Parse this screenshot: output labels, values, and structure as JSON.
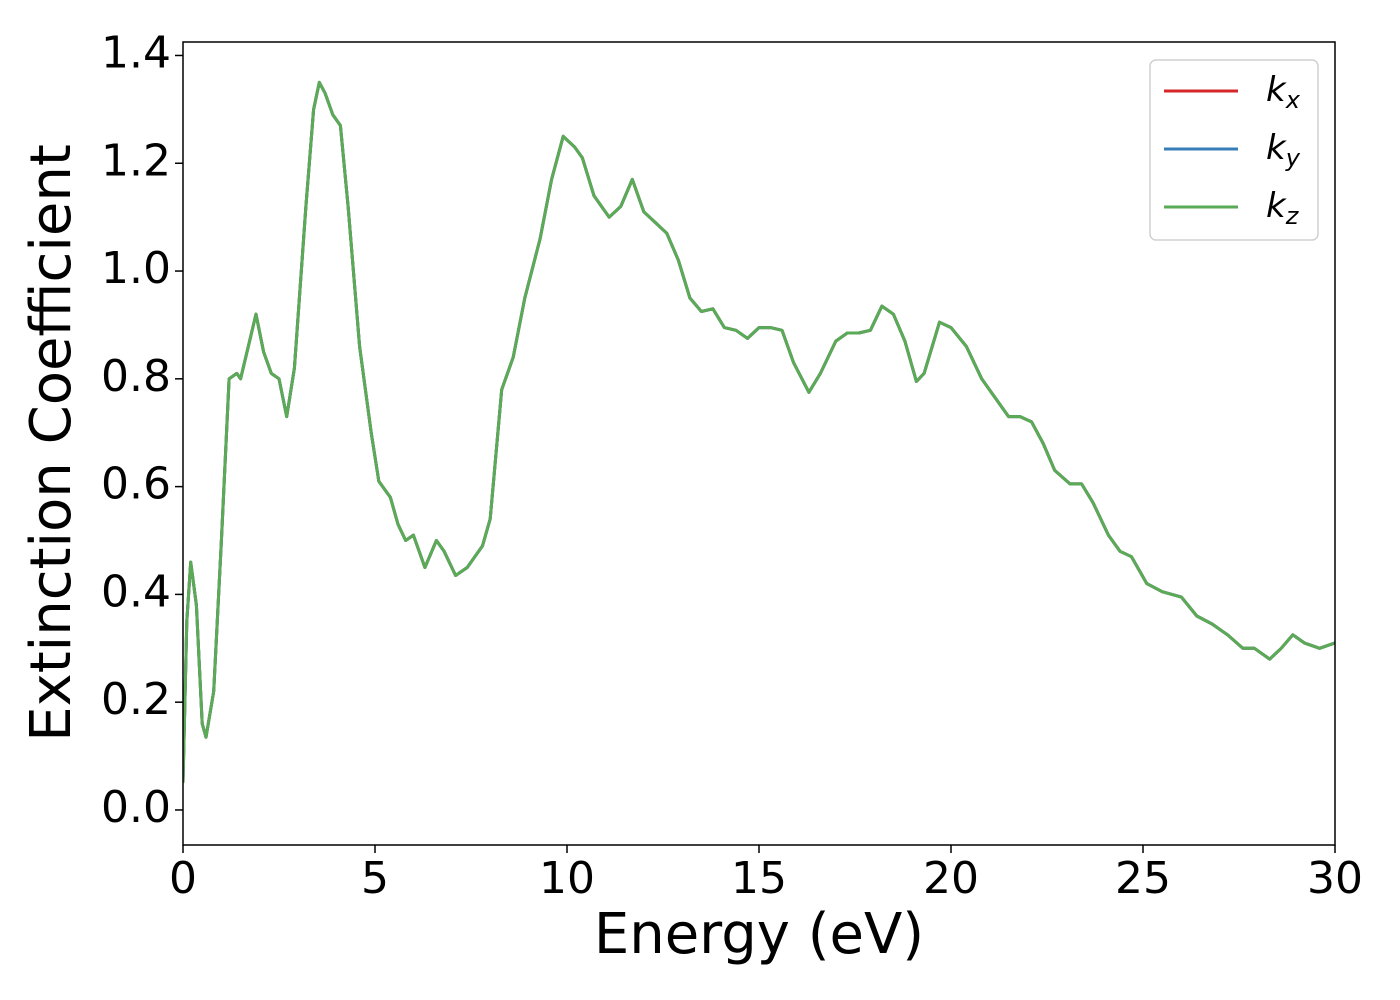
{
  "chart_data": {
    "type": "line",
    "xlabel": "Energy (eV)",
    "ylabel": "Extinction Coefficient",
    "x": [
      0,
      0.1,
      0.2,
      0.35,
      0.5,
      0.6,
      0.8,
      1.0,
      1.2,
      1.4,
      1.5,
      1.7,
      1.9,
      2.1,
      2.3,
      2.5,
      2.7,
      2.9,
      3.2,
      3.4,
      3.55,
      3.7,
      3.9,
      4.1,
      4.3,
      4.6,
      4.9,
      5.1,
      5.4,
      5.6,
      5.8,
      6.0,
      6.3,
      6.6,
      6.8,
      7.1,
      7.4,
      7.8,
      8.0,
      8.3,
      8.6,
      8.9,
      9.3,
      9.6,
      9.9,
      10.2,
      10.4,
      10.7,
      11.1,
      11.4,
      11.7,
      12.0,
      12.3,
      12.6,
      12.9,
      13.2,
      13.5,
      13.8,
      14.1,
      14.4,
      14.7,
      15.0,
      15.3,
      15.6,
      15.9,
      16.3,
      16.6,
      17.0,
      17.3,
      17.6,
      17.9,
      18.2,
      18.5,
      18.8,
      19.1,
      19.3,
      19.7,
      20.0,
      20.4,
      20.8,
      21.1,
      21.5,
      21.8,
      22.1,
      22.4,
      22.7,
      23.1,
      23.4,
      23.7,
      24.1,
      24.4,
      24.7,
      25.1,
      25.5,
      26.0,
      26.4,
      26.8,
      27.2,
      27.6,
      27.9,
      28.3,
      28.6,
      28.9,
      29.2,
      29.6,
      30.0
    ],
    "series": [
      {
        "name": "kx",
        "color": "#d62728",
        "values": [
          0.05,
          0.35,
          0.46,
          0.38,
          0.16,
          0.135,
          0.22,
          0.5,
          0.8,
          0.81,
          0.8,
          0.86,
          0.92,
          0.85,
          0.81,
          0.8,
          0.73,
          0.82,
          1.12,
          1.3,
          1.35,
          1.33,
          1.29,
          1.27,
          1.12,
          0.86,
          0.7,
          0.61,
          0.58,
          0.53,
          0.5,
          0.51,
          0.45,
          0.5,
          0.48,
          0.435,
          0.45,
          0.49,
          0.54,
          0.78,
          0.84,
          0.95,
          1.06,
          1.17,
          1.25,
          1.23,
          1.21,
          1.14,
          1.1,
          1.12,
          1.17,
          1.11,
          1.09,
          1.07,
          1.02,
          0.95,
          0.925,
          0.93,
          0.895,
          0.89,
          0.875,
          0.895,
          0.895,
          0.89,
          0.83,
          0.775,
          0.81,
          0.87,
          0.885,
          0.885,
          0.89,
          0.935,
          0.92,
          0.87,
          0.795,
          0.81,
          0.905,
          0.895,
          0.86,
          0.8,
          0.77,
          0.73,
          0.73,
          0.72,
          0.68,
          0.63,
          0.605,
          0.605,
          0.57,
          0.51,
          0.48,
          0.47,
          0.42,
          0.405,
          0.395,
          0.36,
          0.345,
          0.325,
          0.3,
          0.3,
          0.28,
          0.3,
          0.325,
          0.31,
          0.3,
          0.31
        ]
      },
      {
        "name": "ky",
        "color": "#377eb8",
        "values": [
          0.05,
          0.35,
          0.46,
          0.38,
          0.16,
          0.135,
          0.22,
          0.5,
          0.8,
          0.81,
          0.8,
          0.86,
          0.92,
          0.85,
          0.81,
          0.8,
          0.73,
          0.82,
          1.12,
          1.3,
          1.35,
          1.33,
          1.29,
          1.27,
          1.12,
          0.86,
          0.7,
          0.61,
          0.58,
          0.53,
          0.5,
          0.51,
          0.45,
          0.5,
          0.48,
          0.435,
          0.45,
          0.49,
          0.54,
          0.78,
          0.84,
          0.95,
          1.06,
          1.17,
          1.25,
          1.23,
          1.21,
          1.14,
          1.1,
          1.12,
          1.17,
          1.11,
          1.09,
          1.07,
          1.02,
          0.95,
          0.925,
          0.93,
          0.895,
          0.89,
          0.875,
          0.895,
          0.895,
          0.89,
          0.83,
          0.775,
          0.81,
          0.87,
          0.885,
          0.885,
          0.89,
          0.935,
          0.92,
          0.87,
          0.795,
          0.81,
          0.905,
          0.895,
          0.86,
          0.8,
          0.77,
          0.73,
          0.73,
          0.72,
          0.68,
          0.63,
          0.605,
          0.605,
          0.57,
          0.51,
          0.48,
          0.47,
          0.42,
          0.405,
          0.395,
          0.36,
          0.345,
          0.325,
          0.3,
          0.3,
          0.28,
          0.3,
          0.325,
          0.31,
          0.3,
          0.31
        ]
      },
      {
        "name": "kz",
        "color": "#5aaa56",
        "values": [
          0.05,
          0.35,
          0.46,
          0.38,
          0.16,
          0.135,
          0.22,
          0.5,
          0.8,
          0.81,
          0.8,
          0.86,
          0.92,
          0.85,
          0.81,
          0.8,
          0.73,
          0.82,
          1.12,
          1.3,
          1.35,
          1.33,
          1.29,
          1.27,
          1.12,
          0.86,
          0.7,
          0.61,
          0.58,
          0.53,
          0.5,
          0.51,
          0.45,
          0.5,
          0.48,
          0.435,
          0.45,
          0.49,
          0.54,
          0.78,
          0.84,
          0.95,
          1.06,
          1.17,
          1.25,
          1.23,
          1.21,
          1.14,
          1.1,
          1.12,
          1.17,
          1.11,
          1.09,
          1.07,
          1.02,
          0.95,
          0.925,
          0.93,
          0.895,
          0.89,
          0.875,
          0.895,
          0.895,
          0.89,
          0.83,
          0.775,
          0.81,
          0.87,
          0.885,
          0.885,
          0.89,
          0.935,
          0.92,
          0.87,
          0.795,
          0.81,
          0.905,
          0.895,
          0.86,
          0.8,
          0.77,
          0.73,
          0.73,
          0.72,
          0.68,
          0.63,
          0.605,
          0.605,
          0.57,
          0.51,
          0.48,
          0.47,
          0.42,
          0.405,
          0.395,
          0.36,
          0.345,
          0.325,
          0.3,
          0.3,
          0.28,
          0.3,
          0.325,
          0.31,
          0.3,
          0.31
        ]
      }
    ],
    "xlim": [
      0,
      30
    ],
    "xticks": [
      0,
      5,
      10,
      15,
      20,
      25,
      30
    ],
    "ylim": [
      -0.065,
      1.425
    ],
    "yticks": [
      {
        "value": 0,
        "label": "0.0"
      },
      0.2,
      0.4,
      0.6,
      0.8,
      {
        "value": 1,
        "label": "1.0"
      },
      1.2,
      1.4
    ],
    "legend": "upper right",
    "grid": false
  }
}
